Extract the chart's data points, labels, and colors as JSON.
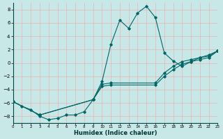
{
  "xlabel": "Humidex (Indice chaleur)",
  "bg_color": "#c8e8e8",
  "line_color": "#006666",
  "grid_color": "#e8b4b4",
  "xlim": [
    0,
    23
  ],
  "ylim": [
    -9,
    9
  ],
  "xticks": [
    0,
    1,
    2,
    3,
    4,
    5,
    6,
    7,
    8,
    9,
    10,
    11,
    12,
    13,
    14,
    15,
    16,
    17,
    18,
    19,
    20,
    21,
    22,
    23
  ],
  "yticks": [
    -8,
    -6,
    -4,
    -2,
    0,
    2,
    4,
    6,
    8
  ],
  "line_peak_x": [
    0,
    1,
    2,
    3,
    4,
    5,
    6,
    7,
    8,
    9,
    10,
    11,
    12,
    13,
    14,
    15,
    16,
    17,
    18,
    19,
    20,
    21,
    22,
    23
  ],
  "line_peak_y": [
    -5.8,
    -6.5,
    -7.0,
    -8.0,
    -8.5,
    -8.3,
    -7.8,
    -7.8,
    -7.3,
    -5.5,
    -2.8,
    2.8,
    6.4,
    5.2,
    7.5,
    8.5,
    6.8,
    1.5,
    0.3,
    -0.5,
    0.2,
    0.8,
    1.2,
    1.8
  ],
  "line_diag1_x": [
    0,
    3,
    9,
    10,
    11,
    16,
    17,
    18,
    19,
    20,
    21,
    22,
    23
  ],
  "line_diag1_y": [
    -5.8,
    -7.8,
    -5.5,
    -3.2,
    -3.0,
    -3.0,
    -1.5,
    -0.5,
    0.2,
    0.5,
    0.8,
    1.0,
    1.8
  ],
  "line_diag2_x": [
    0,
    3,
    9,
    10,
    11,
    16,
    17,
    18,
    19,
    20,
    21,
    22,
    23
  ],
  "line_diag2_y": [
    -5.8,
    -7.8,
    -5.5,
    -3.5,
    -3.3,
    -3.3,
    -2.0,
    -1.0,
    -0.2,
    0.2,
    0.5,
    0.8,
    1.8
  ]
}
